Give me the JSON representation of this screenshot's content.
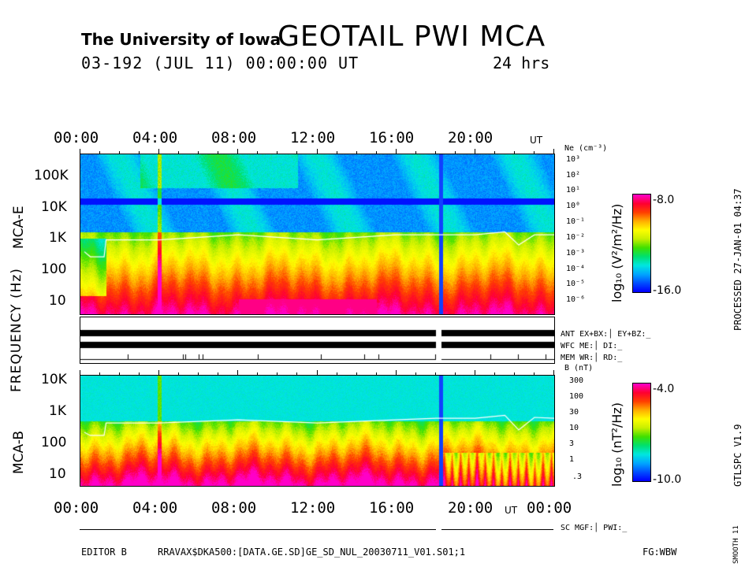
{
  "header": {
    "institution": "The University of Iowa",
    "title": "GEOTAIL PWI MCA",
    "date_line": "03-192 (JUL 11) 00:00:00 UT",
    "duration": "24 hrs"
  },
  "time_axis": {
    "ticks": [
      "00:00",
      "04:00",
      "08:00",
      "12:00",
      "16:00",
      "20:00",
      "00:00"
    ],
    "top_unit": "UT",
    "bottom_unit": "UT"
  },
  "y_labels": {
    "shared": "FREQUENCY (Hz)",
    "upper": "MCA-E",
    "lower": "MCA-B"
  },
  "upper_panel": {
    "freq_ticks": [
      "100K",
      "10K",
      "1K",
      "100",
      "10"
    ],
    "right_axis_title": "Ne (cm⁻³)",
    "right_ticks": [
      "10³",
      "10²",
      "10¹",
      "10⁰",
      "10⁻¹",
      "10⁻²",
      "10⁻³",
      "10⁻⁴",
      "10⁻⁵",
      "10⁻⁶"
    ],
    "colorbar_max": "-8.0",
    "colorbar_min": "-16.0",
    "colorbar_label": "log₁₀ (V²/m²/Hz)"
  },
  "lower_panel": {
    "freq_ticks": [
      "10K",
      "1K",
      "100",
      "10"
    ],
    "right_axis_title": "B (nT)",
    "right_ticks": [
      "300",
      "100",
      "30",
      "10",
      "3",
      "1",
      ".3"
    ],
    "colorbar_max": "-4.0",
    "colorbar_min": "-10.0",
    "colorbar_label": "log₁₀ (nT²/Hz)"
  },
  "status": {
    "ant": "ANT EX+BX:│ EY+BZ:_",
    "wfc": "WFC ME:│    DI:_",
    "mem": "MEM WR:│    RD:_",
    "sc": "SC MGF:│   PWI:_"
  },
  "side_text": {
    "processed": "PROCESSED 27-JAN-01  04:37",
    "version": "GTLSPC  V1.9",
    "smooth": "SMOOTH 11"
  },
  "footer": {
    "editor": "EDITOR B",
    "path": "RRAVAX$DKA500:[DATA.GE.SD]GE_SD_NUL_20030711_V01.S01;1",
    "fg": "FG:WBW"
  },
  "colors": {
    "palette": [
      "#0000ff",
      "#0050ff",
      "#00a8ff",
      "#00e8e0",
      "#00e070",
      "#40e000",
      "#c8f000",
      "#ffff00",
      "#ffb000",
      "#ff4000",
      "#ff0030",
      "#ff00c8"
    ],
    "gap_line": "#1040ff",
    "trace": "#ffffff"
  },
  "chart_data": [
    {
      "type": "heatmap",
      "title": "GEOTAIL PWI MCA",
      "xlabel": "UT",
      "ylabel": "MCA-E FREQUENCY (Hz)",
      "x_range": [
        "00:00",
        "24:00"
      ],
      "y_range_hz": [
        5.6,
        311000
      ],
      "y_scale": "log",
      "z_range": [
        -16.0,
        -8.0
      ],
      "z_label": "log₁₀ (V²/m²/Hz)",
      "data_gap_ut": "18:15",
      "ne_overlay_cm3": [
        {
          "t": 0.2,
          "ne": 0.002
        },
        {
          "t": 0.5,
          "ne": 0.001
        },
        {
          "t": 1.2,
          "ne": 0.001
        },
        {
          "t": 1.3,
          "ne": 0.01
        },
        {
          "t": 4,
          "ne": 0.01
        },
        {
          "t": 8,
          "ne": 0.02
        },
        {
          "t": 12,
          "ne": 0.01
        },
        {
          "t": 16,
          "ne": 0.02
        },
        {
          "t": 18,
          "ne": 0.02
        },
        {
          "t": 20,
          "ne": 0.02
        },
        {
          "t": 21.5,
          "ne": 0.03
        },
        {
          "t": 22.2,
          "ne": 0.005
        },
        {
          "t": 23,
          "ne": 0.02
        },
        {
          "t": 24,
          "ne": 0.02
        }
      ]
    },
    {
      "type": "heatmap",
      "ylabel": "MCA-B FREQUENCY (Hz)",
      "x_range": [
        "00:00",
        "24:00"
      ],
      "y_range_hz": [
        5.6,
        17800
      ],
      "y_scale": "log",
      "z_range": [
        -10.0,
        -4.0
      ],
      "z_label": "log₁₀ (nT²/Hz)",
      "data_gap_ut": "18:15",
      "b_overlay_nT": [
        {
          "t": 0.2,
          "b": 10
        },
        {
          "t": 0.5,
          "b": 8
        },
        {
          "t": 1.2,
          "b": 8
        },
        {
          "t": 1.3,
          "b": 20
        },
        {
          "t": 4,
          "b": 20
        },
        {
          "t": 8,
          "b": 25
        },
        {
          "t": 12,
          "b": 20
        },
        {
          "t": 16,
          "b": 25
        },
        {
          "t": 18,
          "b": 28
        },
        {
          "t": 20,
          "b": 28
        },
        {
          "t": 21.5,
          "b": 35
        },
        {
          "t": 22.2,
          "b": 12
        },
        {
          "t": 23,
          "b": 30
        },
        {
          "t": 24,
          "b": 28
        }
      ]
    }
  ]
}
